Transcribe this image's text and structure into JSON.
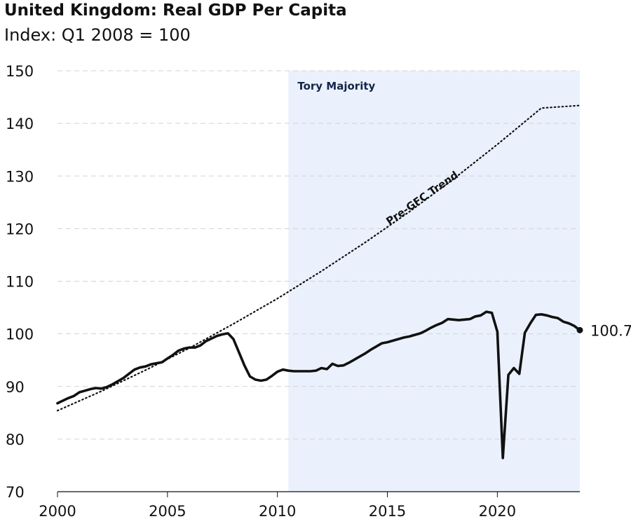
{
  "chart_data": {
    "type": "line",
    "title": "United Kingdom: Real GDP Per Capita",
    "subtitle": "Index: Q1 2008 = 100",
    "xlabel": "",
    "ylabel": "",
    "xlim": [
      2000,
      2023.75
    ],
    "ylim": [
      70,
      150
    ],
    "yticks": [
      70,
      80,
      90,
      100,
      110,
      120,
      130,
      140,
      150
    ],
    "xticks": [
      2000,
      2005,
      2010,
      2015,
      2020
    ],
    "grid": true,
    "shaded_region": {
      "label": "Tory Majority",
      "start": 2010.5,
      "end": 2023.75,
      "color": "#eaf1fc"
    },
    "series": [
      {
        "name": "Real GDP Per Capita",
        "color": "#111111",
        "points": [
          [
            2000.0,
            86.8
          ],
          [
            2000.25,
            87.3
          ],
          [
            2000.5,
            87.8
          ],
          [
            2000.75,
            88.2
          ],
          [
            2001.0,
            88.9
          ],
          [
            2001.25,
            89.2
          ],
          [
            2001.5,
            89.5
          ],
          [
            2001.75,
            89.7
          ],
          [
            2002.0,
            89.6
          ],
          [
            2002.25,
            89.9
          ],
          [
            2002.5,
            90.4
          ],
          [
            2002.75,
            91.0
          ],
          [
            2003.0,
            91.6
          ],
          [
            2003.25,
            92.4
          ],
          [
            2003.5,
            93.2
          ],
          [
            2003.75,
            93.6
          ],
          [
            2004.0,
            93.8
          ],
          [
            2004.25,
            94.2
          ],
          [
            2004.5,
            94.4
          ],
          [
            2004.75,
            94.6
          ],
          [
            2005.0,
            95.3
          ],
          [
            2005.25,
            96.0
          ],
          [
            2005.5,
            96.8
          ],
          [
            2005.75,
            97.2
          ],
          [
            2006.0,
            97.4
          ],
          [
            2006.25,
            97.4
          ],
          [
            2006.5,
            97.8
          ],
          [
            2006.75,
            98.6
          ],
          [
            2007.0,
            99.1
          ],
          [
            2007.25,
            99.6
          ],
          [
            2007.5,
            99.9
          ],
          [
            2007.75,
            100.1
          ],
          [
            2008.0,
            99.0
          ],
          [
            2008.25,
            96.5
          ],
          [
            2008.5,
            94.0
          ],
          [
            2008.75,
            91.9
          ],
          [
            2009.0,
            91.3
          ],
          [
            2009.25,
            91.1
          ],
          [
            2009.5,
            91.3
          ],
          [
            2009.75,
            92.0
          ],
          [
            2010.0,
            92.8
          ],
          [
            2010.25,
            93.2
          ],
          [
            2010.5,
            93.0
          ],
          [
            2010.75,
            92.9
          ],
          [
            2011.0,
            92.9
          ],
          [
            2011.25,
            92.9
          ],
          [
            2011.5,
            92.9
          ],
          [
            2011.75,
            93.0
          ],
          [
            2012.0,
            93.5
          ],
          [
            2012.25,
            93.3
          ],
          [
            2012.5,
            94.3
          ],
          [
            2012.75,
            93.9
          ],
          [
            2013.0,
            94.0
          ],
          [
            2013.25,
            94.5
          ],
          [
            2013.5,
            95.1
          ],
          [
            2013.75,
            95.7
          ],
          [
            2014.0,
            96.3
          ],
          [
            2014.25,
            97.0
          ],
          [
            2014.5,
            97.6
          ],
          [
            2014.75,
            98.2
          ],
          [
            2015.0,
            98.4
          ],
          [
            2015.25,
            98.7
          ],
          [
            2015.5,
            99.0
          ],
          [
            2015.75,
            99.3
          ],
          [
            2016.0,
            99.5
          ],
          [
            2016.25,
            99.8
          ],
          [
            2016.5,
            100.1
          ],
          [
            2016.75,
            100.6
          ],
          [
            2017.0,
            101.2
          ],
          [
            2017.25,
            101.7
          ],
          [
            2017.5,
            102.1
          ],
          [
            2017.75,
            102.8
          ],
          [
            2018.0,
            102.7
          ],
          [
            2018.25,
            102.6
          ],
          [
            2018.5,
            102.7
          ],
          [
            2018.75,
            102.8
          ],
          [
            2019.0,
            103.3
          ],
          [
            2019.25,
            103.5
          ],
          [
            2019.5,
            104.2
          ],
          [
            2019.75,
            104.0
          ],
          [
            2020.0,
            100.4
          ],
          [
            2020.25,
            76.4
          ],
          [
            2020.5,
            92.2
          ],
          [
            2020.75,
            93.5
          ],
          [
            2021.0,
            92.4
          ],
          [
            2021.25,
            100.2
          ],
          [
            2021.5,
            102.0
          ],
          [
            2021.75,
            103.6
          ],
          [
            2022.0,
            103.7
          ],
          [
            2022.25,
            103.5
          ],
          [
            2022.5,
            103.2
          ],
          [
            2022.75,
            103.0
          ],
          [
            2023.0,
            102.3
          ],
          [
            2023.25,
            102.0
          ],
          [
            2023.5,
            101.5
          ],
          [
            2023.75,
            100.7
          ]
        ]
      },
      {
        "name": "Pre-GFC Trend",
        "style": "dotted",
        "color": "#111111",
        "points": [
          [
            2000.0,
            85.4
          ],
          [
            2002.0,
            89.1
          ],
          [
            2004.0,
            93.1
          ],
          [
            2006.0,
            97.3
          ],
          [
            2008.0,
            101.9
          ],
          [
            2010.0,
            106.7
          ],
          [
            2012.0,
            111.9
          ],
          [
            2014.0,
            117.4
          ],
          [
            2016.0,
            123.2
          ],
          [
            2018.0,
            129.4
          ],
          [
            2020.0,
            136.0
          ],
          [
            2022.0,
            142.9
          ],
          [
            2023.75,
            143.4
          ]
        ]
      }
    ],
    "annotations": {
      "trend_label": "Pre-GFC Trend",
      "end_value_label": "100.7"
    }
  }
}
